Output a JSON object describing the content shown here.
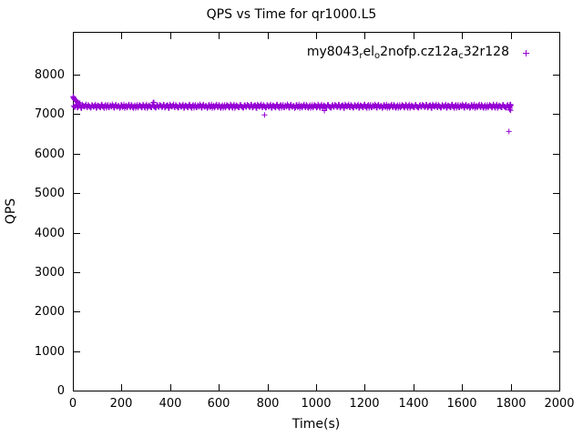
{
  "chart_data": {
    "type": "scatter",
    "title": "QPS vs Time for qr1000.L5",
    "xlabel": "Time(s)",
    "ylabel": "QPS",
    "xlim": [
      0,
      2000
    ],
    "ylim": [
      0,
      8000
    ],
    "x_ticks": [
      0,
      200,
      400,
      600,
      800,
      1000,
      1200,
      1400,
      1600,
      1800,
      2000
    ],
    "y_ticks": [
      0,
      1000,
      2000,
      3000,
      4000,
      5000,
      6000,
      7000,
      8000
    ],
    "grid": false,
    "legend_position": "top-right-inside",
    "series": [
      {
        "name": "my8043_rel_o2nofp.cz12a_c32r128",
        "name_parts": [
          {
            "text": "my8043"
          },
          {
            "text": "r",
            "sub": true
          },
          {
            "text": "el"
          },
          {
            "text": "o",
            "sub": true
          },
          {
            "text": "2nofp.cz12a"
          },
          {
            "text": "c",
            "sub": true
          },
          {
            "text": "32r128"
          }
        ],
        "marker": "plus",
        "color": "#9400D3",
        "runs": [
          {
            "x_start": 3,
            "x_step": 6,
            "values": [
              7210,
              7185,
              7232,
              7174,
              7221,
              7158,
              7243,
              7198,
              7216,
              7181,
              7236,
              7192,
              7167,
              7224,
              7188,
              7247,
              7162,
              7209,
              7178,
              7229,
              7195,
              7153,
              7238,
              7203,
              7171,
              7226,
              7189,
              7215,
              7160,
              7241,
              7184,
              7207,
              7169,
              7233,
              7196,
              7152,
              7219,
              7186,
              7244,
              7173,
              7212,
              7157,
              7228,
              7191,
              7165,
              7237,
              7202,
              7176,
              7223,
              7159,
              7246,
              7183,
              7205,
              7170,
              7231,
              7194,
              7164,
              7218,
              7187,
              7239,
              7210,
              7185,
              7232,
              7174,
              7221,
              7158,
              7243,
              7198,
              7216,
              7181,
              7236,
              7192,
              7167,
              7224,
              7188,
              7247,
              7162,
              7209,
              7178,
              7229,
              7195,
              7153,
              7238,
              7203,
              7171,
              7226,
              7189,
              7215,
              7160,
              7241,
              7184,
              7207,
              7169,
              7233,
              7196,
              7152,
              7219,
              7186,
              7244,
              7173,
              7212,
              7157,
              7228,
              7191,
              7165,
              7237,
              7202,
              7176,
              7223,
              7159,
              7246,
              7183,
              7205,
              7170,
              7231,
              7194,
              7164,
              7218,
              7187,
              7239,
              7210,
              7185,
              7232,
              7174,
              7221,
              7158,
              7243,
              7198,
              7216,
              7181,
              7236,
              7192,
              7167,
              7224,
              7188,
              7247,
              7162,
              7209,
              7178,
              7229,
              7195,
              7153,
              7238,
              7203,
              7171,
              7226,
              7189,
              7215,
              7160,
              7241,
              7184,
              7207,
              7169,
              7233,
              7196,
              7152,
              7219,
              7186,
              7244,
              7173,
              7212,
              7157,
              7228,
              7191,
              7165,
              7237,
              7202,
              7176,
              7223,
              7159,
              7246,
              7183,
              7205,
              7170,
              7231,
              7194,
              7164,
              7218,
              7187,
              7239,
              7210,
              7185,
              7232,
              7174,
              7221,
              7158,
              7243,
              7198,
              7216,
              7181,
              7236,
              7192,
              7167,
              7224,
              7188,
              7247,
              7162,
              7209,
              7178,
              7229,
              7195,
              7153,
              7238,
              7203,
              7171,
              7226,
              7189,
              7215,
              7160,
              7241,
              7184,
              7207,
              7169,
              7233,
              7196,
              7152,
              7219,
              7186,
              7244,
              7173,
              7212,
              7157,
              7228,
              7191,
              7165,
              7237,
              7202,
              7176,
              7223,
              7159,
              7246,
              7183,
              7205,
              7170,
              7231,
              7194,
              7164,
              7218,
              7187,
              7239,
              7210,
              7185,
              7232,
              7174,
              7221,
              7158,
              7243,
              7198,
              7216,
              7181,
              7236,
              7192,
              7167,
              7224,
              7188,
              7247,
              7162,
              7209,
              7178,
              7229,
              7195,
              7153,
              7238,
              7203,
              7171,
              7226,
              7189,
              7215,
              7160,
              7241,
              7184,
              7207,
              7169,
              7233,
              7196,
              7152,
              7219,
              7186,
              7244,
              7173,
              7212,
              7157,
              7228,
              7191,
              7165,
              7237,
              7202,
              7176,
              7223,
              7159,
              7246,
              7183,
              7205,
              7170,
              7231,
              7194,
              7164,
              7218,
              7187,
              7239
            ]
          },
          {
            "x_start": 6,
            "x_step": 6,
            "values": [
              7176,
              7241,
              7163,
              7208,
              7227,
              7154,
              7219,
              7183,
              7249,
              7171,
              7206,
              7161,
              7234,
              7189,
              7217,
              7156,
              7225,
              7199,
              7168,
              7243,
              7181,
              7214,
              7159,
              7237,
              7172,
              7204,
              7248,
              7166,
              7222,
              7185,
              7211,
              7155,
              7230,
              7177,
              7245,
              7193,
              7162,
              7220,
              7184,
              7240,
              7169,
              7201,
              7157,
              7235,
              7190,
              7213,
              7165,
              7244,
              7179,
              7209,
              7153,
              7226,
              7197,
              7170,
              7238,
              7186,
              7160,
              7232,
              7182,
              7218,
              7176,
              7241,
              7163,
              7208,
              7227,
              7154,
              7219,
              7183,
              7249,
              7171,
              7206,
              7161,
              7234,
              7189,
              7217,
              7156,
              7225,
              7199,
              7168,
              7243,
              7181,
              7214,
              7159,
              7237,
              7172,
              7204,
              7248,
              7166,
              7222,
              7185,
              7211,
              7155,
              7230,
              7177,
              7245,
              7193,
              7162,
              7220,
              7184,
              7240,
              7169,
              7201,
              7157,
              7235,
              7190,
              7213,
              7165,
              7244,
              7179,
              7209,
              7153,
              7226,
              7197,
              7170,
              7238,
              7186,
              7160,
              7232,
              7182,
              7218,
              7176,
              7241,
              7163,
              7208,
              7227,
              7154,
              7219,
              7183,
              7249,
              7171,
              7206,
              7161,
              7234,
              7189,
              7217,
              7156,
              7225,
              7199,
              7168,
              7243,
              7181,
              7214,
              7159,
              7237,
              7172,
              7204,
              7248,
              7166,
              7222,
              7185,
              7211,
              7155,
              7230,
              7177,
              7245,
              7193,
              7162,
              7220,
              7184,
              7240,
              7169,
              7201,
              7157,
              7235,
              7190,
              7213,
              7165,
              7244,
              7179,
              7209,
              7153,
              7226,
              7197,
              7170,
              7238,
              7186,
              7160,
              7232,
              7182,
              7218,
              7176,
              7241,
              7163,
              7208,
              7227,
              7154,
              7219,
              7183,
              7249,
              7171,
              7206,
              7161,
              7234,
              7189,
              7217,
              7156,
              7225,
              7199,
              7168,
              7243,
              7181,
              7214,
              7159,
              7237,
              7172,
              7204,
              7248,
              7166,
              7222,
              7185,
              7211,
              7155,
              7230,
              7177,
              7245,
              7193,
              7162,
              7220,
              7184,
              7240,
              7169,
              7201,
              7157,
              7235,
              7190,
              7213,
              7165,
              7244,
              7179,
              7209,
              7153,
              7226,
              7197,
              7170,
              7238,
              7186,
              7160,
              7232,
              7182,
              7218,
              7176,
              7241,
              7163,
              7208,
              7227,
              7154,
              7219,
              7183,
              7249,
              7171,
              7206,
              7161,
              7234,
              7189,
              7217,
              7156,
              7225,
              7199,
              7168,
              7243,
              7181,
              7214,
              7159,
              7237,
              7172,
              7204,
              7248,
              7166,
              7222,
              7185,
              7211,
              7155,
              7230,
              7177,
              7245,
              7193,
              7162,
              7220,
              7184,
              7240,
              7169,
              7201,
              7157,
              7235,
              7190,
              7213,
              7165,
              7244,
              7179,
              7209,
              7153,
              7226,
              7197,
              7170,
              7238,
              7186,
              7160,
              7232,
              7182,
              7218
            ]
          }
        ],
        "extra_points": [
          [
            1,
            7445
          ],
          [
            2,
            7430
          ],
          [
            3,
            7418
          ],
          [
            4,
            7405
          ],
          [
            5,
            7392
          ],
          [
            7,
            7378
          ],
          [
            9,
            7362
          ],
          [
            11,
            7348
          ],
          [
            14,
            7330
          ],
          [
            18,
            7312
          ],
          [
            23,
            7295
          ],
          [
            29,
            7280
          ],
          [
            330,
            7292
          ],
          [
            333,
            7300
          ],
          [
            788,
            6982
          ],
          [
            1034,
            7090
          ],
          [
            1793,
            6562
          ],
          [
            1796,
            7120
          ],
          [
            1798,
            7160
          ],
          [
            1799,
            7205
          ],
          [
            1800,
            7245
          ],
          [
            1800,
            7098
          ]
        ]
      }
    ]
  }
}
